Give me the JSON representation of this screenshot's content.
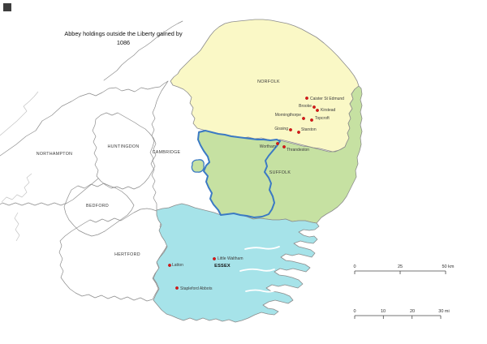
{
  "title": {
    "line1": "Abbey holdings outside the Liberty gained by",
    "line2": "1086"
  },
  "county_labels": {
    "norfolk": "NORFOLK",
    "suffolk": "SUFFOLK",
    "essex": "ESSEX",
    "northampton": "NORTHAMPTON",
    "huntingdon": "HUNTINGDON",
    "cambridge": "CAMBRIDGE",
    "bedford": "BEDFORD",
    "hertford": "HERTFORD"
  },
  "colors": {
    "norfolk": "#FAF8C6",
    "suffolk": "#C6E1A2",
    "essex": "#A6E3E9",
    "liberty_boundary": "#3B7AC4",
    "marker": "#E01313",
    "county_line": "#8C8C8C"
  },
  "places": [
    {
      "name": "Caister St Edmund",
      "dot": [
        378,
        121
      ],
      "label": [
        382,
        123
      ],
      "anchor": "start"
    },
    {
      "name": "Brooke",
      "dot": [
        387,
        132
      ],
      "label": [
        384,
        132
      ],
      "anchor": "end"
    },
    {
      "name": "Kirstead",
      "dot": [
        391,
        136
      ],
      "label": [
        395,
        137
      ],
      "anchor": "start"
    },
    {
      "name": "Morningthorpe",
      "dot": [
        374,
        146
      ],
      "label": [
        371,
        143
      ],
      "anchor": "end"
    },
    {
      "name": "Topcroft",
      "dot": [
        384,
        148
      ],
      "label": [
        388,
        147
      ],
      "anchor": "start"
    },
    {
      "name": "Gissing",
      "dot": [
        358,
        160
      ],
      "label": [
        355,
        160
      ],
      "anchor": "end"
    },
    {
      "name": "Starston",
      "dot": [
        368,
        163
      ],
      "label": [
        371,
        161
      ],
      "anchor": "start"
    },
    {
      "name": "Wortham",
      "dot": [
        342,
        177
      ],
      "label": [
        340,
        182
      ],
      "anchor": "end"
    },
    {
      "name": "Thrandeston",
      "dot": [
        350,
        181
      ],
      "label": [
        353,
        186
      ],
      "anchor": "start"
    },
    {
      "name": "Little Waltham",
      "dot": [
        264,
        319
      ],
      "label": [
        268,
        320
      ],
      "anchor": "start"
    },
    {
      "name": "Latton",
      "dot": [
        209,
        327
      ],
      "label": [
        212,
        328
      ],
      "anchor": "start"
    },
    {
      "name": "Stapleford Abbots",
      "dot": [
        218,
        355
      ],
      "label": [
        222,
        357
      ],
      "anchor": "start"
    }
  ],
  "scalebars": {
    "km": {
      "labels": [
        "0",
        "25",
        "50 km"
      ]
    },
    "mi": {
      "labels": [
        "0",
        "10",
        "20",
        "30 mi"
      ]
    }
  }
}
